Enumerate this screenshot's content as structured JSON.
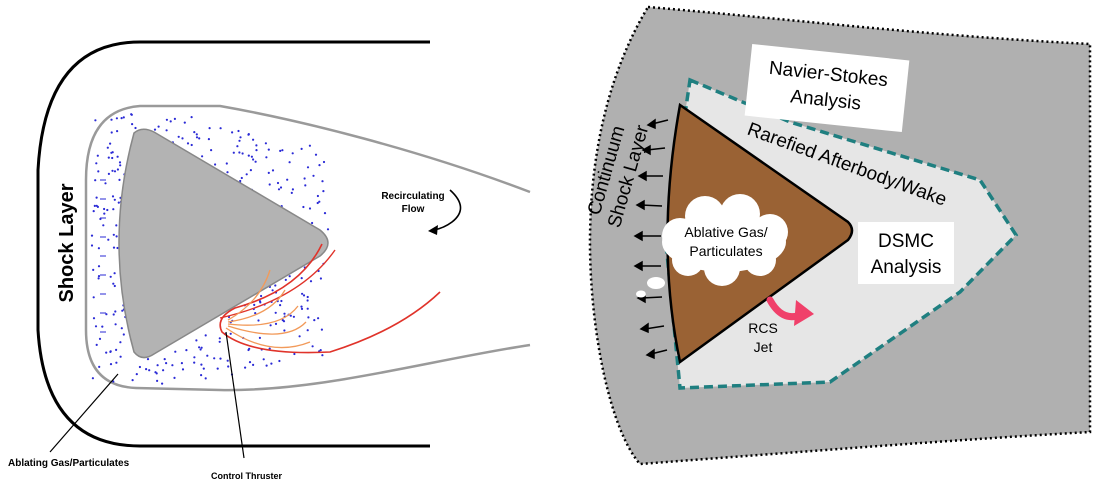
{
  "left_diagram": {
    "shock_layer_label": "Shock Layer",
    "recirculating_flow_label": [
      "Recirculating",
      "Flow"
    ],
    "ablating_label": "Ablating Gas/Particulates",
    "thruster_label": "Control Thruster"
  },
  "right_diagram": {
    "navier_stokes_label": [
      "Navier-Stokes",
      "Analysis"
    ],
    "rarefied_label": "Rarefied Afterbody/Wake",
    "continuum_label": [
      "Continuum",
      "Shock Layer"
    ],
    "ablative_label": [
      "Ablative Gas/",
      "Particulates"
    ],
    "dsmc_label": [
      "DSMC",
      "Analysis"
    ],
    "rcs_label": [
      "RCS",
      "Jet"
    ]
  },
  "colors": {
    "body_gray": "#b3b3b3",
    "outer_region_gray": "#b0b0b0",
    "wake_region_light": "#e6e6e6",
    "vehicle_brown": "#9a6234",
    "wake_border_teal": "#1f7f80",
    "particle_blue": "#2a2ad6",
    "thruster_red": "#e0332a",
    "thruster_orange": "#f29a5a",
    "rcs_pink": "#f0406a"
  }
}
